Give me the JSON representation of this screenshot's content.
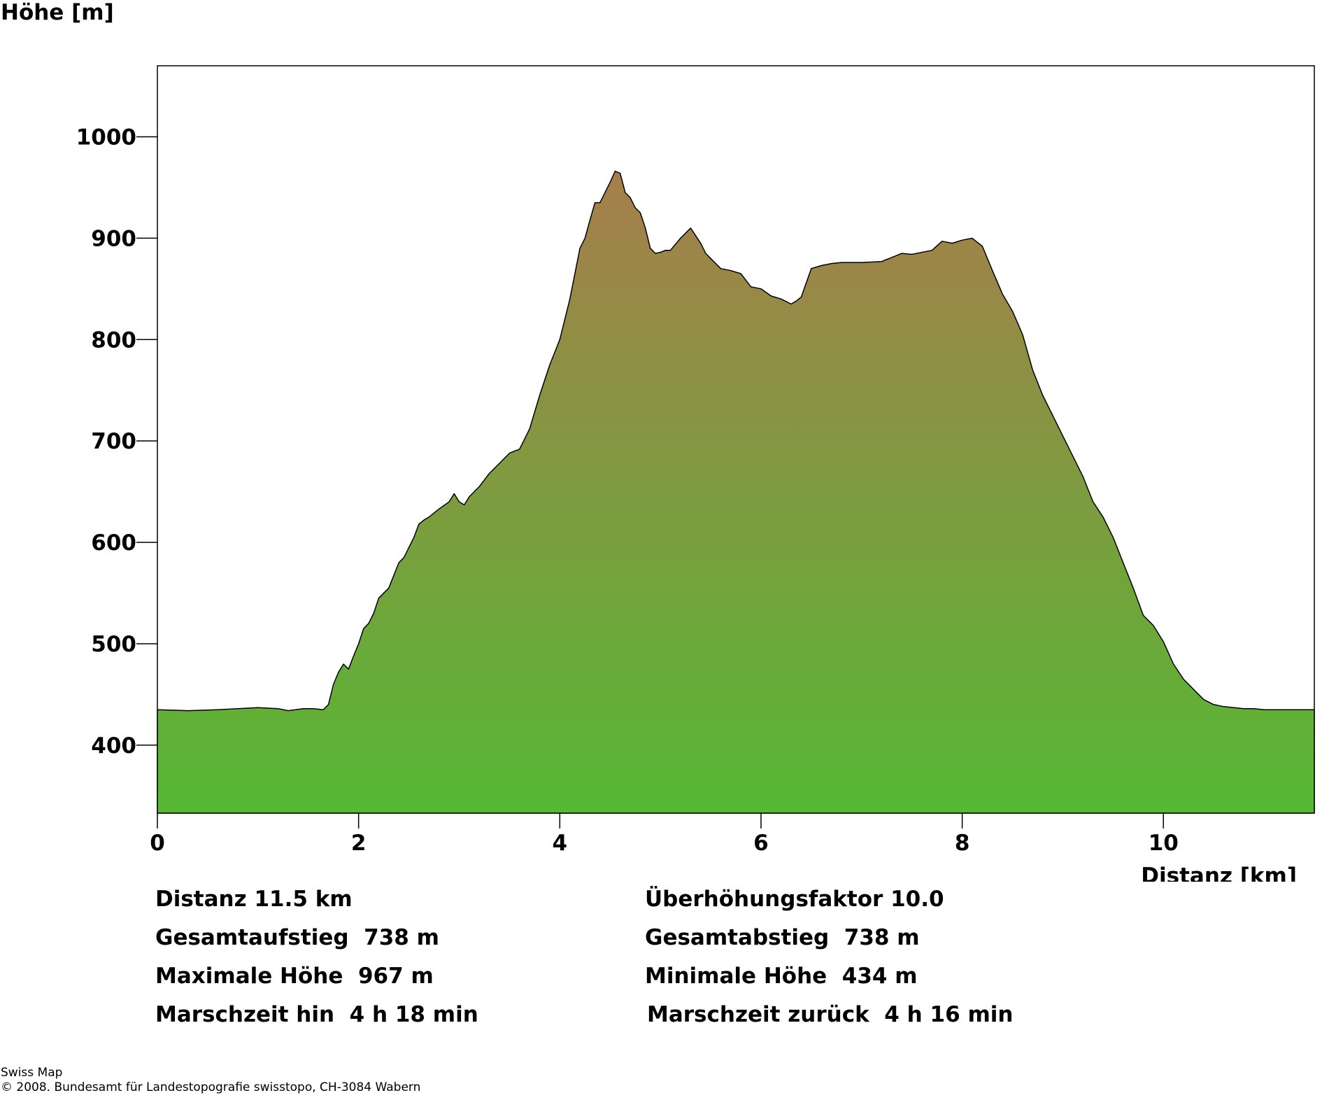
{
  "chart_data": {
    "type": "area",
    "ylabel": "Höhe [m]",
    "xlabel": "Distanz [km]",
    "xlim": [
      0,
      11.5
    ],
    "ylim": [
      333,
      1070
    ],
    "xticks": [
      0,
      2,
      4,
      6,
      8,
      10
    ],
    "yticks": [
      400,
      500,
      600,
      700,
      800,
      900,
      1000
    ],
    "fill_gradient": {
      "top": "#a67e4b",
      "bottom": "#56b834"
    },
    "series": [
      {
        "x": [
          0,
          0.3,
          0.6,
          1.0,
          1.2,
          1.3,
          1.45,
          1.55,
          1.65,
          1.7,
          1.75,
          1.8,
          1.85,
          1.9,
          1.95,
          2.0,
          2.05,
          2.1,
          2.15,
          2.2,
          2.3,
          2.4,
          2.45,
          2.5,
          2.55,
          2.6,
          2.65,
          2.7,
          2.8,
          2.9,
          2.95,
          3.0,
          3.05,
          3.1,
          3.2,
          3.3,
          3.4,
          3.5,
          3.6,
          3.7,
          3.8,
          3.9,
          4.0,
          4.1,
          4.2,
          4.25,
          4.3,
          4.35,
          4.4,
          4.5,
          4.55,
          4.6,
          4.65,
          4.7,
          4.75,
          4.8,
          4.85,
          4.9,
          4.95,
          5.0,
          5.05,
          5.1,
          5.2,
          5.3,
          5.4,
          5.45,
          5.5,
          5.6,
          5.7,
          5.8,
          5.9,
          6.0,
          6.1,
          6.2,
          6.3,
          6.35,
          6.4,
          6.5,
          6.6,
          6.7,
          6.8,
          7.0,
          7.2,
          7.4,
          7.5,
          7.7,
          7.8,
          7.9,
          8.0,
          8.1,
          8.2,
          8.3,
          8.4,
          8.5,
          8.6,
          8.7,
          8.8,
          8.9,
          9.0,
          9.1,
          9.2,
          9.3,
          9.4,
          9.5,
          9.6,
          9.7,
          9.8,
          9.9,
          10.0,
          10.1,
          10.2,
          10.3,
          10.4,
          10.5,
          10.6,
          10.7,
          10.8,
          10.9,
          11.0,
          11.2,
          11.3,
          11.5
        ],
        "y": [
          435,
          434,
          435,
          437,
          436,
          434,
          436,
          436,
          435,
          440,
          460,
          472,
          480,
          475,
          488,
          500,
          515,
          520,
          530,
          545,
          555,
          580,
          585,
          595,
          605,
          618,
          622,
          625,
          633,
          640,
          648,
          640,
          637,
          645,
          655,
          668,
          678,
          688,
          692,
          712,
          745,
          775,
          800,
          840,
          890,
          900,
          918,
          935,
          935,
          955,
          966,
          964,
          945,
          940,
          930,
          925,
          910,
          890,
          885,
          886,
          888,
          888,
          900,
          910,
          895,
          885,
          880,
          870,
          868,
          865,
          852,
          850,
          843,
          840,
          835,
          838,
          842,
          870,
          873,
          875,
          876,
          876,
          877,
          885,
          884,
          888,
          897,
          895,
          898,
          900,
          892,
          868,
          845,
          828,
          805,
          770,
          745,
          725,
          705,
          685,
          665,
          640,
          625,
          605,
          580,
          555,
          528,
          518,
          502,
          480,
          465,
          455,
          445,
          440,
          438,
          437,
          436,
          436,
          435,
          435,
          435,
          435
        ]
      }
    ]
  },
  "stats": {
    "distanz": "Distanz 11.5 km",
    "ueberhoehung": "Überhöhungsfaktor 10.0",
    "aufstieg": "Gesamtaufstieg  738 m",
    "abstieg": "Gesamtabstieg  738 m",
    "max_hoehe": "Maximale Höhe  967 m",
    "min_hoehe": "Minimale Höhe  434 m",
    "marsch_hin": "Marschzeit hin  4 h 18 min",
    "marsch_zurueck": "Marschzeit zurück  4 h 16 min"
  },
  "footer": {
    "line1": "Swiss Map",
    "line2": "© 2008. Bundesamt für Landestopografie swisstopo, CH-3084 Wabern"
  }
}
